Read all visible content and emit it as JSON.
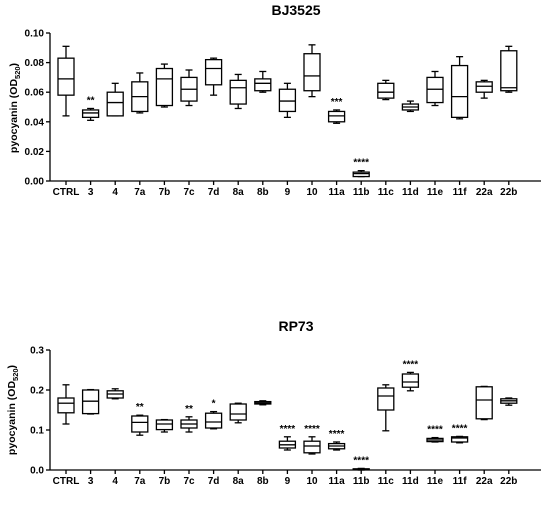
{
  "chart_data": [
    {
      "type": "boxplot",
      "title": "BJ3525",
      "ylabel": "pyocyanin (OD",
      "ylabel_sub": "520",
      "ylabel_close": ")",
      "ylim": [
        0,
        0.1
      ],
      "yticks": [
        "0.00",
        "0.02",
        "0.04",
        "0.06",
        "0.08",
        "0.10"
      ],
      "ytick_values": [
        0,
        0.02,
        0.04,
        0.06,
        0.08,
        0.1
      ],
      "categories": [
        "CTRL",
        "3",
        "4",
        "7a",
        "7b",
        "7c",
        "7d",
        "8a",
        "8b",
        "9",
        "10",
        "11a",
        "11b",
        "11c",
        "11d",
        "11e",
        "11f",
        "22a",
        "22b"
      ],
      "boxes": [
        {
          "min": 0.044,
          "q1": 0.058,
          "median": 0.069,
          "q3": 0.083,
          "max": 0.091,
          "sig": ""
        },
        {
          "min": 0.041,
          "q1": 0.043,
          "median": 0.046,
          "q3": 0.048,
          "max": 0.049,
          "sig": "**"
        },
        {
          "min": 0.044,
          "q1": 0.044,
          "median": 0.053,
          "q3": 0.06,
          "max": 0.066,
          "sig": ""
        },
        {
          "min": 0.046,
          "q1": 0.047,
          "median": 0.057,
          "q3": 0.067,
          "max": 0.073,
          "sig": ""
        },
        {
          "min": 0.05,
          "q1": 0.051,
          "median": 0.069,
          "q3": 0.076,
          "max": 0.079,
          "sig": ""
        },
        {
          "min": 0.051,
          "q1": 0.054,
          "median": 0.062,
          "q3": 0.07,
          "max": 0.075,
          "sig": ""
        },
        {
          "min": 0.058,
          "q1": 0.065,
          "median": 0.076,
          "q3": 0.082,
          "max": 0.083,
          "sig": ""
        },
        {
          "min": 0.049,
          "q1": 0.052,
          "median": 0.063,
          "q3": 0.068,
          "max": 0.072,
          "sig": ""
        },
        {
          "min": 0.06,
          "q1": 0.061,
          "median": 0.066,
          "q3": 0.069,
          "max": 0.074,
          "sig": ""
        },
        {
          "min": 0.043,
          "q1": 0.047,
          "median": 0.054,
          "q3": 0.062,
          "max": 0.066,
          "sig": ""
        },
        {
          "min": 0.057,
          "q1": 0.061,
          "median": 0.071,
          "q3": 0.086,
          "max": 0.092,
          "sig": ""
        },
        {
          "min": 0.039,
          "q1": 0.04,
          "median": 0.044,
          "q3": 0.047,
          "max": 0.048,
          "sig": "***"
        },
        {
          "min": 0.003,
          "q1": 0.003,
          "median": 0.005,
          "q3": 0.006,
          "max": 0.007,
          "sig": "****"
        },
        {
          "min": 0.055,
          "q1": 0.056,
          "median": 0.06,
          "q3": 0.066,
          "max": 0.068,
          "sig": ""
        },
        {
          "min": 0.047,
          "q1": 0.048,
          "median": 0.05,
          "q3": 0.052,
          "max": 0.054,
          "sig": ""
        },
        {
          "min": 0.051,
          "q1": 0.053,
          "median": 0.062,
          "q3": 0.07,
          "max": 0.074,
          "sig": ""
        },
        {
          "min": 0.042,
          "q1": 0.043,
          "median": 0.057,
          "q3": 0.078,
          "max": 0.084,
          "sig": ""
        },
        {
          "min": 0.056,
          "q1": 0.06,
          "median": 0.064,
          "q3": 0.067,
          "max": 0.068,
          "sig": ""
        },
        {
          "min": 0.06,
          "q1": 0.061,
          "median": 0.063,
          "q3": 0.088,
          "max": 0.091,
          "sig": ""
        }
      ]
    },
    {
      "type": "boxplot",
      "title": "RP73",
      "ylabel": "pyocyanin (OD",
      "ylabel_sub": "520",
      "ylabel_close": ")",
      "ylim": [
        0,
        0.3
      ],
      "yticks": [
        "0.0",
        "0.1",
        "0.2",
        "0.3"
      ],
      "ytick_values": [
        0,
        0.1,
        0.2,
        0.3
      ],
      "categories": [
        "CTRL",
        "3",
        "4",
        "7a",
        "7b",
        "7c",
        "7d",
        "8a",
        "8b",
        "9",
        "10",
        "11a",
        "11b",
        "11c",
        "11d",
        "11e",
        "11f",
        "22a",
        "22b"
      ],
      "boxes": [
        {
          "min": 0.115,
          "q1": 0.143,
          "median": 0.167,
          "q3": 0.18,
          "max": 0.213,
          "sig": ""
        },
        {
          "min": 0.14,
          "q1": 0.141,
          "median": 0.172,
          "q3": 0.2,
          "max": 0.201,
          "sig": ""
        },
        {
          "min": 0.178,
          "q1": 0.18,
          "median": 0.19,
          "q3": 0.198,
          "max": 0.203,
          "sig": ""
        },
        {
          "min": 0.087,
          "q1": 0.095,
          "median": 0.119,
          "q3": 0.135,
          "max": 0.137,
          "sig": "**"
        },
        {
          "min": 0.095,
          "q1": 0.101,
          "median": 0.115,
          "q3": 0.125,
          "max": 0.126,
          "sig": ""
        },
        {
          "min": 0.095,
          "q1": 0.105,
          "median": 0.115,
          "q3": 0.125,
          "max": 0.133,
          "sig": "**"
        },
        {
          "min": 0.103,
          "q1": 0.105,
          "median": 0.12,
          "q3": 0.142,
          "max": 0.146,
          "sig": "*"
        },
        {
          "min": 0.118,
          "q1": 0.125,
          "median": 0.14,
          "q3": 0.165,
          "max": 0.167,
          "sig": ""
        },
        {
          "min": 0.163,
          "q1": 0.165,
          "median": 0.168,
          "q3": 0.171,
          "max": 0.173,
          "sig": ""
        },
        {
          "min": 0.05,
          "q1": 0.055,
          "median": 0.063,
          "q3": 0.072,
          "max": 0.083,
          "sig": "****"
        },
        {
          "min": 0.04,
          "q1": 0.043,
          "median": 0.06,
          "q3": 0.072,
          "max": 0.083,
          "sig": "****"
        },
        {
          "min": 0.05,
          "q1": 0.053,
          "median": 0.06,
          "q3": 0.066,
          "max": 0.07,
          "sig": "****"
        },
        {
          "min": 0.0,
          "q1": 0.001,
          "median": 0.002,
          "q3": 0.003,
          "max": 0.004,
          "sig": "****"
        },
        {
          "min": 0.098,
          "q1": 0.15,
          "median": 0.185,
          "q3": 0.205,
          "max": 0.213,
          "sig": ""
        },
        {
          "min": 0.198,
          "q1": 0.207,
          "median": 0.22,
          "q3": 0.24,
          "max": 0.244,
          "sig": "****"
        },
        {
          "min": 0.07,
          "q1": 0.071,
          "median": 0.075,
          "q3": 0.079,
          "max": 0.081,
          "sig": "****"
        },
        {
          "min": 0.068,
          "q1": 0.07,
          "median": 0.08,
          "q3": 0.083,
          "max": 0.084,
          "sig": "****"
        },
        {
          "min": 0.126,
          "q1": 0.128,
          "median": 0.175,
          "q3": 0.208,
          "max": 0.209,
          "sig": ""
        },
        {
          "min": 0.162,
          "q1": 0.167,
          "median": 0.173,
          "q3": 0.178,
          "max": 0.18,
          "sig": ""
        }
      ]
    }
  ]
}
